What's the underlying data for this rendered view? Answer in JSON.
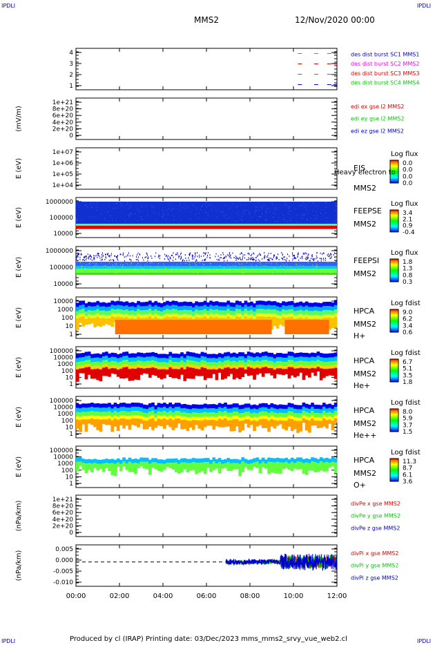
{
  "header": {
    "corner_label": "IPDLI",
    "spacecraft": "MMS2",
    "datetime": "12/Nov/2020 00:00"
  },
  "footer": {
    "text": "Produced by cl (IRAP)   Printing date: 03/Dec/2023   mms_mms2_srvy_vue_web2.cl"
  },
  "colors": {
    "red": "#e00000",
    "green": "#00cc00",
    "blue": "#0000cc",
    "magenta": "#ff00ff",
    "frame": "#000000"
  },
  "chart_data": [
    {
      "type": "line",
      "ylim": [
        0.5,
        4.5
      ],
      "yticks": [
        "4",
        "3",
        "2",
        "1"
      ],
      "legend": [
        {
          "text": "des dist burst SC1 MMS1",
          "color": "#0000cc"
        },
        {
          "text": "des dist burst SC2 MMS2",
          "color": "#ff00ff"
        },
        {
          "text": "des dist burst SC3 MMS3",
          "color": "#e00000"
        },
        {
          "text": "des dist burst SC4 MMS4",
          "color": "#00cc00"
        }
      ],
      "series": [
        {
          "y": 4,
          "color": "#00cc00",
          "segments": [
            [
              10.2,
              10.45
            ],
            [
              10.95,
              11.2
            ],
            [
              11.55,
              12.0
            ]
          ]
        },
        {
          "y": 3,
          "color": "#e00000",
          "segments": [
            [
              10.2,
              10.45
            ],
            [
              10.95,
              11.2
            ],
            [
              11.55,
              12.0
            ]
          ]
        },
        {
          "y": 2,
          "color": "#ff00ff",
          "segments": [
            [
              10.2,
              10.45
            ],
            [
              10.95,
              11.2
            ],
            [
              11.55,
              12.0
            ]
          ]
        },
        {
          "y": 1,
          "color": "#0000cc",
          "segments": [
            [
              10.2,
              10.45
            ],
            [
              10.95,
              11.2
            ],
            [
              11.55,
              12.0
            ]
          ]
        }
      ]
    },
    {
      "type": "line",
      "ylabel": "(mV/m)",
      "ylim": [
        0,
        1.1e+21
      ],
      "yticks": [
        "1e+21",
        "8e+20",
        "6e+20",
        "4e+20",
        "2e+20",
        "0"
      ],
      "zero_line": true,
      "legend": [
        {
          "text": "edi ex gse l2 MMS2",
          "color": "#e00000"
        },
        {
          "text": "edi ey gse l2 MMS2",
          "color": "#00cc00"
        },
        {
          "text": "edi ez gse l2 MMS2",
          "color": "#0000cc"
        }
      ]
    },
    {
      "type": "heatmap",
      "ylabel": "E (eV)",
      "yticks": [
        "1e+07",
        "1e+06",
        "1e+05",
        "1e+04"
      ],
      "right_labels": [
        "EIS",
        "Heavy electron to",
        "MMS2"
      ],
      "colorbar": {
        "title": "Log flux",
        "ticks": [
          "0.0",
          "0.0",
          "0.0",
          "0.0"
        ]
      }
    },
    {
      "type": "heatmap",
      "ylabel": "E (eV)",
      "yticks": [
        "1000000",
        "100000",
        "10000"
      ],
      "right_labels": [
        "FEEPSE",
        "MMS2"
      ],
      "colorbar": {
        "title": "Log flux",
        "ticks": [
          "3.4",
          "2.1",
          "0.9",
          "-0.4"
        ]
      }
    },
    {
      "type": "heatmap",
      "ylabel": "E (eV)",
      "yticks": [
        "1000000",
        "100000",
        "10000"
      ],
      "right_labels": [
        "FEEPSI",
        "MMS2"
      ],
      "colorbar": {
        "title": "Log flux",
        "ticks": [
          "1.8",
          "1.3",
          "0.8",
          "0.3"
        ]
      }
    },
    {
      "type": "heatmap",
      "ylabel": "E (eV)",
      "yticks": [
        "10000",
        "1000",
        "100",
        "10",
        "1"
      ],
      "right_labels": [
        "HPCA",
        "MMS2",
        "H+"
      ],
      "colorbar": {
        "title": "Log fdist",
        "ticks": [
          "9.0",
          "6.2",
          "3.4",
          "0.6"
        ]
      }
    },
    {
      "type": "heatmap",
      "ylabel": "E (eV)",
      "yticks": [
        "100000",
        "10000",
        "1000",
        "100",
        "10",
        "1"
      ],
      "right_labels": [
        "HPCA",
        "MMS2",
        "He+"
      ],
      "colorbar": {
        "title": "Log fdist",
        "ticks": [
          "6.7",
          "5.1",
          "3.5",
          "1.8"
        ]
      }
    },
    {
      "type": "heatmap",
      "ylabel": "E (eV)",
      "yticks": [
        "100000",
        "10000",
        "1000",
        "100",
        "10",
        "1"
      ],
      "right_labels": [
        "HPCA",
        "MMS2",
        "He++"
      ],
      "colorbar": {
        "title": "Log fdist",
        "ticks": [
          "8.0",
          "5.9",
          "3.7",
          "1.5"
        ]
      }
    },
    {
      "type": "heatmap",
      "ylabel": "E (eV)",
      "yticks": [
        "100000",
        "10000",
        "1000",
        "100",
        "10",
        "1"
      ],
      "right_labels": [
        "HPCA",
        "MMS2",
        "O+"
      ],
      "colorbar": {
        "title": "Log fdist",
        "ticks": [
          "11.3",
          "8.7",
          "6.1",
          "3.6"
        ]
      }
    },
    {
      "type": "line",
      "ylabel": "(nPa/km)",
      "ylim": [
        0,
        1.1e+21
      ],
      "yticks": [
        "1e+21",
        "8e+20",
        "6e+20",
        "4e+20",
        "2e+20",
        "0"
      ],
      "zero_line": true,
      "legend": [
        {
          "text": "divPe x gse MMS2",
          "color": "#e00000"
        },
        {
          "text": "divPe y gse MMS2",
          "color": "#00cc00"
        },
        {
          "text": "divPe z gse MMS2",
          "color": "#0000cc"
        }
      ]
    },
    {
      "type": "line",
      "ylabel": "(nPa/km)",
      "ylim": [
        -0.01,
        0.007
      ],
      "yticks": [
        "0.005",
        "0.000",
        "-0.005",
        "-0.010"
      ],
      "zero_line": true,
      "legend": [
        {
          "text": "divPi x gse MMS2",
          "color": "#e00000"
        },
        {
          "text": "divPi y gse MMS2",
          "color": "#00cc00"
        },
        {
          "text": "divPi z gse MMS2",
          "color": "#0000cc"
        }
      ]
    }
  ],
  "x_axis": {
    "tick_labels": [
      "00:00",
      "02:00",
      "04:00",
      "06:00",
      "08:00",
      "10:00",
      "12:00"
    ]
  }
}
